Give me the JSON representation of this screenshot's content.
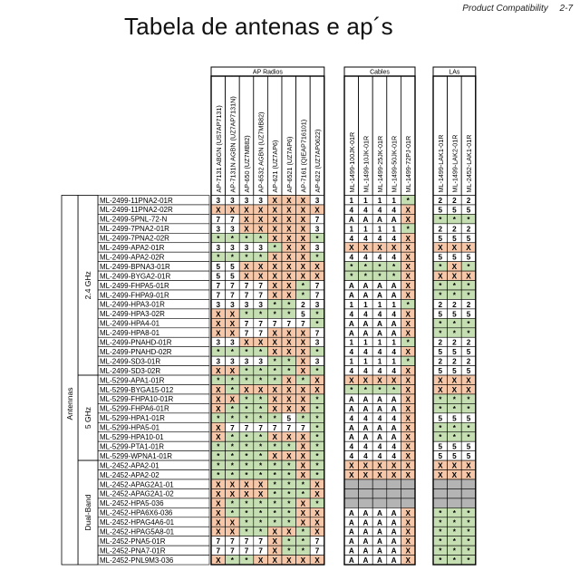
{
  "header": {
    "section": "Product Compatibility",
    "page": "2-7"
  },
  "title": "Tabela de antenas e ap´s",
  "groups": {
    "ap": "AP Radios",
    "cables": "Cables",
    "las": "LAs"
  },
  "ap_columns": [
    "AP-7131 ABGN (US7AP7131)",
    "AP-7131N AGBN (UZ7AP7131N)",
    "AP-650 (UZ7MB82)",
    "AP-6532 AGBN (UZ7MB82)",
    "AP-621 (UZ7AP6)",
    "AP-6521 (UZ7AP6)",
    "AP-7161 (QIEAP716101)",
    "AP-622 (UZ7AP0622)"
  ],
  "cable_columns": [
    "ML-1499-100JK-01R",
    "ML-1499-10JK-01R",
    "ML-1499-25JK-01R",
    "ML-1499-50JK-01R",
    "ML-1499-72PJ-01R"
  ],
  "la_columns": [
    "ML-1499-LAK1-01R",
    "ML-1499-LAK2-01R",
    "ML-2452-LAK1-01R"
  ],
  "row_group_label": "Antennas",
  "sections": [
    {
      "label": "2.4 GHz",
      "rows": [
        {
          "name": "ML-2499-11PNA2-01R",
          "ap": "3333XXX3",
          "cb": "1111*",
          "la": "222"
        },
        {
          "name": "ML-2499-11PNA2-02R",
          "ap": "XXXXXXXX",
          "cb": "4444X",
          "la": "555"
        },
        {
          "name": "ML-2499-5PNL-72-N",
          "ap": "77XXXXX7",
          "cb": "AAAAX",
          "la": "***"
        },
        {
          "name": "ML-2499-7PNA2-01R",
          "ap": "33XXXXX3",
          "cb": "1111*",
          "la": "222"
        },
        {
          "name": "ML-2499-7PNA2-02R",
          "ap": "****XXX*",
          "cb": "4444X",
          "la": "555"
        },
        {
          "name": "ML-2499-APA2-01R",
          "ap": "3333*XX3",
          "cb": "XXXXX",
          "la": "XXX"
        },
        {
          "name": "ML-2499-APA2-02R",
          "ap": "****XXX*",
          "cb": "4444X",
          "la": "555"
        },
        {
          "name": "ML-2499-BPNA3-01R",
          "ap": "55XXXXXX",
          "cb": "****X",
          "la": "*X*"
        },
        {
          "name": "ML-2499-BYGA2-01R",
          "ap": "55XXXXXX",
          "cb": "****X",
          "la": "XXX"
        },
        {
          "name": "ML-2499-FHPA5-01R",
          "ap": "7777XX*7",
          "cb": "AAAAX",
          "la": "***"
        },
        {
          "name": "ML-2499-FHPA9-01R",
          "ap": "7777XX*7",
          "cb": "AAAAX",
          "la": "***"
        },
        {
          "name": "ML-2499-HPA3-01R",
          "ap": "3333**23",
          "cb": "1111*",
          "la": "222"
        },
        {
          "name": "ML-2499-HPA3-02R",
          "ap": "XX****5*",
          "cb": "4444X",
          "la": "555"
        },
        {
          "name": "ML-2499-HPA4-01",
          "ap": "XX77777*",
          "cb": "AAAAX",
          "la": "***"
        },
        {
          "name": "ML-2499-HPA8-01",
          "ap": "XX77XXX7",
          "cb": "AAAAX",
          "la": "***"
        },
        {
          "name": "ML-2499-PNAHD-01R",
          "ap": "33XXXXX3",
          "cb": "1111*",
          "la": "222"
        },
        {
          "name": "ML-2499-PNAHD-02R",
          "ap": "****XXX*",
          "cb": "4444X",
          "la": "555"
        },
        {
          "name": "ML-2499-SD3-01R",
          "ap": "3333**X3",
          "cb": "1111*",
          "la": "222"
        },
        {
          "name": "ML-2499-SD3-02R",
          "ap": "XX****X*",
          "cb": "4444X",
          "la": "555"
        }
      ]
    },
    {
      "label": "5 GHz",
      "rows": [
        {
          "name": "ML-5299-APA1-01R",
          "ap": "*****X*X",
          "cb": "XXXXX",
          "la": "XXX"
        },
        {
          "name": "ML-5299-BYGA15-012",
          "ap": "X*XXXXXX",
          "cb": "****X",
          "la": "XXX"
        },
        {
          "name": "ML-5299-FHPA10-01R",
          "ap": "XX**XXX*",
          "cb": "AAAAX",
          "la": "***"
        },
        {
          "name": "ML-5299-FHPA6-01R",
          "ap": "X***XXX*",
          "cb": "AAAAX",
          "la": "***"
        },
        {
          "name": "ML-5299-HPA1-01R",
          "ap": "*****5**",
          "cb": "4444X",
          "la": "555"
        },
        {
          "name": "ML-5299-HPA5-01",
          "ap": "X777777*",
          "cb": "AAAAX",
          "la": "***"
        },
        {
          "name": "ML-5299-HPA10-01",
          "ap": "X***XXX*",
          "cb": "AAAAX",
          "la": "***"
        },
        {
          "name": "ML-5299-PTA1-01R",
          "ap": "******X*",
          "cb": "4444X",
          "la": "555"
        },
        {
          "name": "ML-5299-WPNA1-01R",
          "ap": "****XXX*",
          "cb": "4444X",
          "la": "555"
        }
      ]
    },
    {
      "label": "Dual-Band",
      "rows": [
        {
          "name": "ML-2452-APA2-01",
          "ap": "******X*",
          "cb": "XXXXX",
          "la": "XXX"
        },
        {
          "name": "ML-2452-APA2-02",
          "ap": "******X*",
          "cb": "XXXXX",
          "la": "XXX"
        },
        {
          "name": "ML-2452-APAG2A1-01",
          "ap": "XXXX***X",
          "cb": "-----",
          "la": "---"
        },
        {
          "name": "ML-2452-APAG2A1-02",
          "ap": "XXXX***X",
          "cb": "-----",
          "la": "---"
        },
        {
          "name": "ML-2452-HPA5-036",
          "ap": "X*****X*",
          "cb": "-----",
          "la": "---"
        },
        {
          "name": "ML-2452-HPA6X6-036",
          "ap": "X*****XX",
          "cb": "AAAAX",
          "la": "***"
        },
        {
          "name": "ML-2452-HPAG4A6-01",
          "ap": "XX****XX",
          "cb": "AAAAX",
          "la": "***"
        },
        {
          "name": "ML-2452-HPAG5A8-01",
          "ap": "XX**XX*X",
          "cb": "AAAAX",
          "la": "***"
        },
        {
          "name": "ML-2452-PNA5-01R",
          "ap": "7777X**7",
          "cb": "AAAAX",
          "la": "***"
        },
        {
          "name": "ML-2452-PNA7-01R",
          "ap": "7777X**7",
          "cb": "AAAAX",
          "la": "***"
        },
        {
          "name": "ML-2452-PNL9M3-036",
          "ap": "X**XXXXX",
          "cb": "AAAAX",
          "la": "***"
        }
      ]
    }
  ],
  "colors": {
    "compatible": "#c6dfb2",
    "incompatible": "#f6c7a8",
    "na": "#b4b4b4",
    "line": "#000000"
  }
}
